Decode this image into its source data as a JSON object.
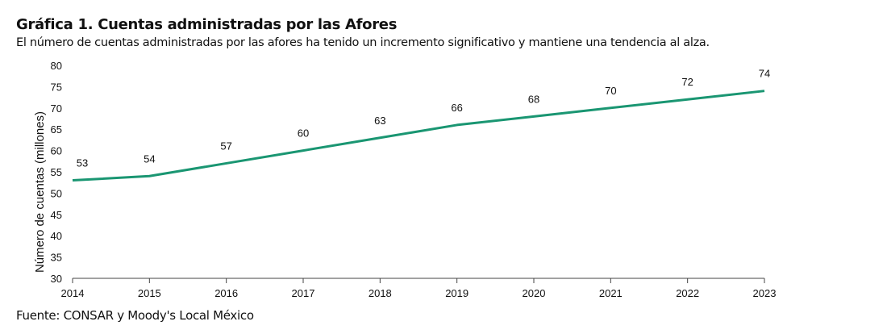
{
  "title": "Gráfica 1. Cuentas administradas por las Afores",
  "subtitle": "El número de cuentas administradas por las afores ha tenido un incremento significativo y mantiene una tendencia al alza.",
  "source": "Fuente: CONSAR y Moody's Local México",
  "chart_data": {
    "type": "line",
    "title": "Gráfica 1. Cuentas administradas por las Afores",
    "xlabel": "",
    "ylabel": "Número de cuentas (millones)",
    "x": [
      "2014",
      "2015",
      "2016",
      "2017",
      "2018",
      "2019",
      "2020",
      "2021",
      "2022",
      "2023"
    ],
    "values": [
      53,
      54,
      57,
      60,
      63,
      66,
      68,
      70,
      72,
      74
    ],
    "data_labels": [
      "53",
      "54",
      "57",
      "60",
      "63",
      "66",
      "68",
      "70",
      "72",
      "74"
    ],
    "ylim": [
      30,
      80
    ],
    "yticks": [
      "30",
      "35",
      "40",
      "45",
      "50",
      "55",
      "60",
      "65",
      "70",
      "75",
      "80"
    ],
    "grid": false,
    "color": "#1a9672"
  }
}
